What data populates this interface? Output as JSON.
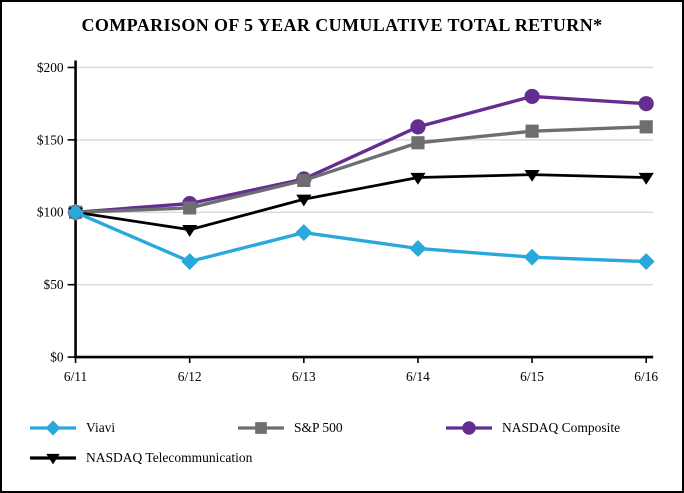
{
  "title": "COMPARISON OF 5 YEAR CUMULATIVE TOTAL RETURN*",
  "chart_data": {
    "type": "line",
    "title": "COMPARISON OF 5 YEAR CUMULATIVE TOTAL RETURN*",
    "x_categories": [
      "6/11",
      "6/12",
      "6/13",
      "6/14",
      "6/15",
      "6/16"
    ],
    "series": [
      {
        "name": "Viavi",
        "color": "#29a8dc",
        "marker": "diamond",
        "line_width": 3.4,
        "values": [
          100,
          66,
          86,
          75,
          69,
          66
        ]
      },
      {
        "name": "S&P 500",
        "color": "#6d6e71",
        "marker": "square",
        "line_width": 3.4,
        "values": [
          100,
          103,
          122,
          148,
          156,
          159
        ]
      },
      {
        "name": "NASDAQ Composite",
        "color": "#662d91",
        "marker": "circle",
        "line_width": 3.4,
        "values": [
          100,
          106,
          123,
          159,
          180,
          175
        ]
      },
      {
        "name": "NASDAQ Telecommunication",
        "color": "#000000",
        "marker": "triangle-down",
        "line_width": 2.8,
        "values": [
          100,
          88,
          109,
          124,
          126,
          124
        ]
      }
    ],
    "ylim": [
      0,
      200
    ],
    "y_ticks": [
      {
        "value": 0,
        "label": "$0"
      },
      {
        "value": 50,
        "label": "$50"
      },
      {
        "value": 100,
        "label": "$100"
      },
      {
        "value": 150,
        "label": "$150"
      },
      {
        "value": 200,
        "label": "$200"
      }
    ],
    "xlabel": "",
    "ylabel": "",
    "grid": true,
    "gridline_color": "#d9d9d9",
    "axis_color": "#000000",
    "legend_position": "bottom",
    "draw_order": [
      2,
      1,
      3,
      0
    ]
  }
}
